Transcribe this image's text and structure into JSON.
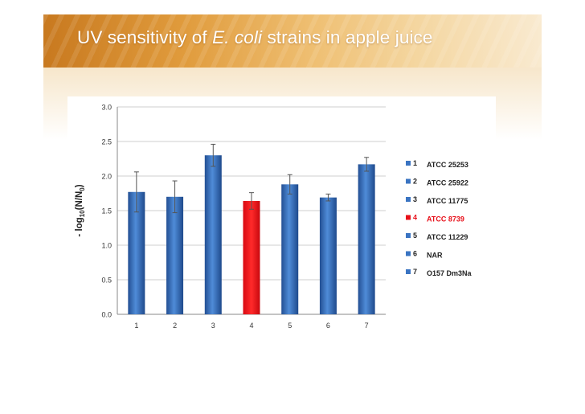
{
  "slide": {
    "title_prefix": "UV sensitivity of ",
    "title_italic": "E. coli",
    "title_suffix": " strains in apple juice"
  },
  "chart_data": {
    "type": "bar",
    "categories": [
      "1",
      "2",
      "3",
      "4",
      "5",
      "6",
      "7"
    ],
    "values": [
      1.77,
      1.7,
      2.3,
      1.64,
      1.88,
      1.69,
      2.17
    ],
    "errors": [
      0.29,
      0.23,
      0.16,
      0.12,
      0.14,
      0.05,
      0.1
    ],
    "ylabel": "- log10(N/N0)",
    "ylim": [
      0,
      3.0
    ],
    "yticks": [
      "0.0",
      "0.5",
      "1.0",
      "1.5",
      "2.0",
      "2.5",
      "3.0"
    ],
    "grid": true,
    "colors": [
      "#3a74c2",
      "#3a74c2",
      "#3a74c2",
      "#e8101a",
      "#3a74c2",
      "#3a74c2",
      "#3a74c2"
    ],
    "legend_position": "right",
    "legend": [
      {
        "num": "1",
        "label": "ATCC 25253"
      },
      {
        "num": "2",
        "label": "ATCC 25922"
      },
      {
        "num": "3",
        "label": "ATCC 11775"
      },
      {
        "num": "4",
        "label": "ATCC 8739"
      },
      {
        "num": "5",
        "label": "ATCC 11229"
      },
      {
        "num": "6",
        "label": "NAR"
      },
      {
        "num": "7",
        "label": "O157 Dm3Na"
      }
    ]
  }
}
